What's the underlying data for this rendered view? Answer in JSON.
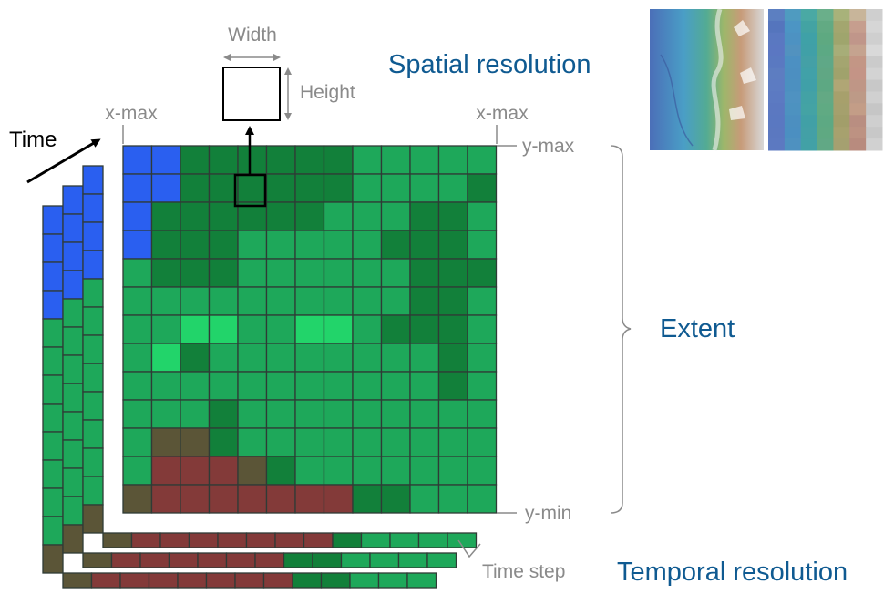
{
  "labels": {
    "time": "Time",
    "width": "Width",
    "height": "Height",
    "spatial_resolution": "Spatial resolution",
    "x_max_left": "x-max",
    "x_max_right": "x-max",
    "y_max": "y-max",
    "y_min": "y-min",
    "extent": "Extent",
    "time_step": "Time step",
    "temporal_resolution": "Temporal resolution"
  },
  "colors": {
    "water": "#2a5ff0",
    "forest_dark": "#12803a",
    "forest": "#1ea85a",
    "grass_light": "#22d46a",
    "bare_soil": "#5b5537",
    "urban": "#833a39",
    "grid_line": "#2f3b36",
    "label_gray": "#8a8a8a",
    "title_blue": "#0f5a91",
    "black": "#000000"
  },
  "raster": {
    "rows": 13,
    "cols": 13,
    "layers": 4,
    "class_codes": {
      "W": "water",
      "D": "forest_dark",
      "G": "forest",
      "L": "grass_light",
      "B": "bare_soil",
      "U": "urban"
    },
    "front_grid": [
      "WWDDDDDDGGGGG",
      "WWDDDDDDGGGGD",
      "WDDDDDDGGGDDG",
      "WDDDGGGGGDDDG",
      "GDDDGGGGGGDDD",
      "GGGGGGGGGGDDG",
      "GGLLGGLLGDDDG",
      "GLDGGGGGGGGDG",
      "GGGGGGGGGGGDG",
      "GGGDGGGGGGGGG",
      "GBBDGGGGGGGGG",
      "GUUUBDGGGGGGG",
      "BUUUUUUUDDGGG"
    ],
    "layer_column_classes": [
      [
        "W",
        "W",
        "W",
        "W",
        "G",
        "G",
        "G",
        "G",
        "G",
        "G",
        "G",
        "G",
        "B"
      ],
      [
        "W",
        "W",
        "W",
        "W",
        "G",
        "G",
        "G",
        "G",
        "G",
        "G",
        "G",
        "G",
        "B"
      ],
      [
        "W",
        "W",
        "W",
        "W",
        "G",
        "G",
        "G",
        "G",
        "G",
        "G",
        "G",
        "G",
        "B"
      ]
    ],
    "layer_row_classes": [
      [
        "B",
        "U",
        "U",
        "U",
        "U",
        "U",
        "U",
        "U",
        "D",
        "D",
        "G",
        "G",
        "G"
      ],
      [
        "B",
        "U",
        "U",
        "U",
        "U",
        "U",
        "U",
        "D",
        "D",
        "G",
        "G",
        "G",
        "G"
      ],
      [
        "B",
        "U",
        "U",
        "U",
        "U",
        "U",
        "U",
        "U",
        "D",
        "G",
        "G",
        "G",
        "G"
      ]
    ]
  },
  "thumbnails": [
    {
      "name": "relief-map"
    },
    {
      "name": "pixelated-map",
      "pixel_colors": [
        [
          "#5c7fc1",
          "#4f9bc0",
          "#4aa9a4",
          "#6aaf8a",
          "#a8b27a",
          "#c8b59a",
          "#cfcfcf"
        ],
        [
          "#5575bd",
          "#4c95c4",
          "#43a3a3",
          "#62aa83",
          "#a3a66f",
          "#c69e8e",
          "#d6d6d6"
        ],
        [
          "#5a78c1",
          "#4d92c2",
          "#3fa1a7",
          "#5ea981",
          "#9fa56d",
          "#c0968a",
          "#cfcfcf"
        ],
        [
          "#5b77c2",
          "#5292bf",
          "#40a0a7",
          "#5ca984",
          "#a7ad78",
          "#c5a38f",
          "#d9d9d9"
        ],
        [
          "#5a79c1",
          "#4c90c2",
          "#44a0a6",
          "#5fa887",
          "#a4a570",
          "#c39685",
          "#cbcbcb"
        ],
        [
          "#5d7dc1",
          "#4c8fc1",
          "#41a1a8",
          "#60a784",
          "#a0a26c",
          "#c49486",
          "#d3d3d3"
        ],
        [
          "#5d7cc2",
          "#4c90c0",
          "#40a0a8",
          "#5da883",
          "#b0a675",
          "#bf9686",
          "#c8c8c8"
        ],
        [
          "#5c7ac2",
          "#4f92c1",
          "#43a2a5",
          "#63a984",
          "#a7a06c",
          "#bd9a87",
          "#d0d0d0"
        ],
        [
          "#5b78c1",
          "#4d92c0",
          "#44a3a4",
          "#60aa83",
          "#a5a06d",
          "#c39d87",
          "#c6c6c6"
        ],
        [
          "#5a78c1",
          "#4c8fc0",
          "#41a0a6",
          "#5da983",
          "#a29e6a",
          "#b98e81",
          "#cfcfcf"
        ],
        [
          "#5b78c0",
          "#4b8fc1",
          "#43a0a6",
          "#5fa982",
          "#a7a16e",
          "#bd9282",
          "#c8c8c8"
        ],
        [
          "#5c79c1",
          "#4e91c0",
          "#42a1a6",
          "#61a885",
          "#a5a070",
          "#b88b7e",
          "#d1d1d1"
        ]
      ]
    }
  ]
}
